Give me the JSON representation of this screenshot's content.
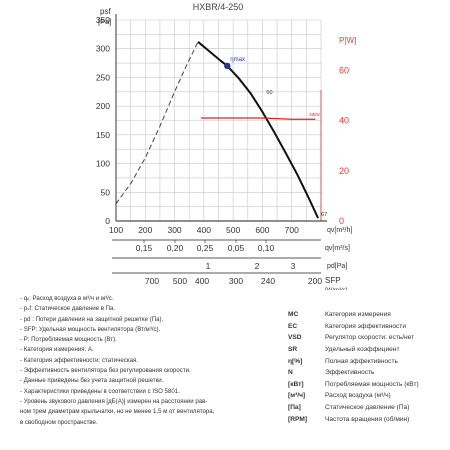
{
  "title": "HXBR/4-250",
  "colors": {
    "curve": "#111111",
    "power": "#e02020",
    "grid": "#c8c8c8",
    "accent_axis": "#e04040",
    "eta_point": "#2a3590"
  },
  "y_left": {
    "label_1": "p",
    "label_sub": "sf",
    "label_2": "[Pa]",
    "ticks": [
      "350",
      "300",
      "250",
      "200",
      "150",
      "100",
      "50",
      "0"
    ]
  },
  "y_right": {
    "label": "P[W]",
    "ticks": [
      "60",
      "40",
      "20",
      "0"
    ]
  },
  "axes": [
    {
      "key": "qh",
      "label": "q",
      "label_sub": "v",
      "label_unit": "[m³/h]",
      "ticks": [
        "100",
        "200",
        "300",
        "400",
        "500",
        "600",
        "700"
      ]
    },
    {
      "key": "qs",
      "label": "q",
      "label_sub": "v",
      "label_unit": "[m³/s]",
      "ticks": [
        "0,15",
        "0,20",
        "0,25",
        "0,05",
        "0,10"
      ]
    },
    {
      "key": "pd",
      "label": "p",
      "label_sub": "d",
      "label_unit": "[Pa]",
      "ticks": [
        "1",
        "2",
        "3"
      ]
    },
    {
      "key": "sfp",
      "label": "SFP",
      "label_unit": "[W/m³/s]",
      "ticks": [
        "700",
        "500",
        "400",
        "300",
        "240",
        "200"
      ]
    }
  ],
  "curve_labels": {
    "eta": "ηmax",
    "point_50": "50",
    "point_67": "67",
    "power_label": "230V"
  },
  "notes": [
    "- qᵥ: Расход воздуха в м³/ч и м³/с.",
    "- pₛf: Статическое давление в Па.",
    "- p⁠d : Потери давления на защитной решетке (Па).",
    "- SFP: Удельная мощность вентилятора (Вт/м³/с).",
    "- P: Потребляемая мощность (Вт).",
    "- Категория измерения: А.",
    "- Категория эффективности: статическая.",
    "- Эффективность вентилятора без регулирования скорости.",
    "- Данные приведены без учета защитной решетки.",
    "- Характеристики приведены в соответствии с ISO 5801.",
    "- Уровень звукового давления [дБ(А)] измерен на расстоянии рав-",
    "  ном трем диаметрам крыльчатки, но не менее 1,5 м от вентилятора,",
    "  в свободном пространстве."
  ],
  "legend": [
    {
      "abbr": "MC",
      "text": "Категория измерения"
    },
    {
      "abbr": "EC",
      "text": "Категория эффективности"
    },
    {
      "abbr": "VSD",
      "text": "Регулятор скорости: есть/нет"
    },
    {
      "abbr": "SR",
      "text": "Удельный коэффициент"
    },
    {
      "abbr": "η[%]",
      "text": "Полная эффективность"
    },
    {
      "abbr": "N",
      "text": "Эффективность"
    },
    {
      "abbr": "[кВт]",
      "text": "Потребляемая мощность (кВт)"
    },
    {
      "abbr": "[м³/ч]",
      "text": "Расход воздуха (м³/ч)"
    },
    {
      "abbr": "[Па]",
      "text": "Статическое давление (Па)"
    },
    {
      "abbr": "[RPM]",
      "text": "Частота вращения (об/мин)"
    }
  ],
  "chart_data": {
    "type": "line",
    "title": "HXBR/4-250",
    "xlabel": "qv[m³/h]",
    "ylabel": "psf[Pa]",
    "xlim": [
      100,
      800
    ],
    "ylim": [
      0,
      350
    ],
    "y2lim": [
      0,
      80
    ],
    "grid": true,
    "series": [
      {
        "axis": "left",
        "style": "solid",
        "x": [
          380,
          420,
          460,
          480,
          520,
          560,
          600,
          640,
          680,
          720,
          760,
          790
        ],
        "y": [
          312,
          295,
          278,
          270,
          248,
          222,
          190,
          155,
          118,
          80,
          38,
          5
        ]
      },
      {
        "axis": "left",
        "style": "dashed",
        "x": [
          100,
          150,
          200,
          250,
          300,
          340,
          380
        ],
        "y": [
          30,
          65,
          110,
          165,
          225,
          270,
          312
        ]
      },
      {
        "name": "230V",
        "axis": "right",
        "style": "solid",
        "x": [
          390,
          500,
          600,
          700,
          780
        ],
        "y": [
          41,
          41,
          41,
          40.5,
          40.5
        ]
      }
    ],
    "markers": [
      {
        "label": "ηmax",
        "x": 480,
        "y": 270
      },
      {
        "label": "50",
        "x": 600,
        "y": 225
      },
      {
        "label": "67",
        "x": 790,
        "y": 5
      }
    ]
  }
}
